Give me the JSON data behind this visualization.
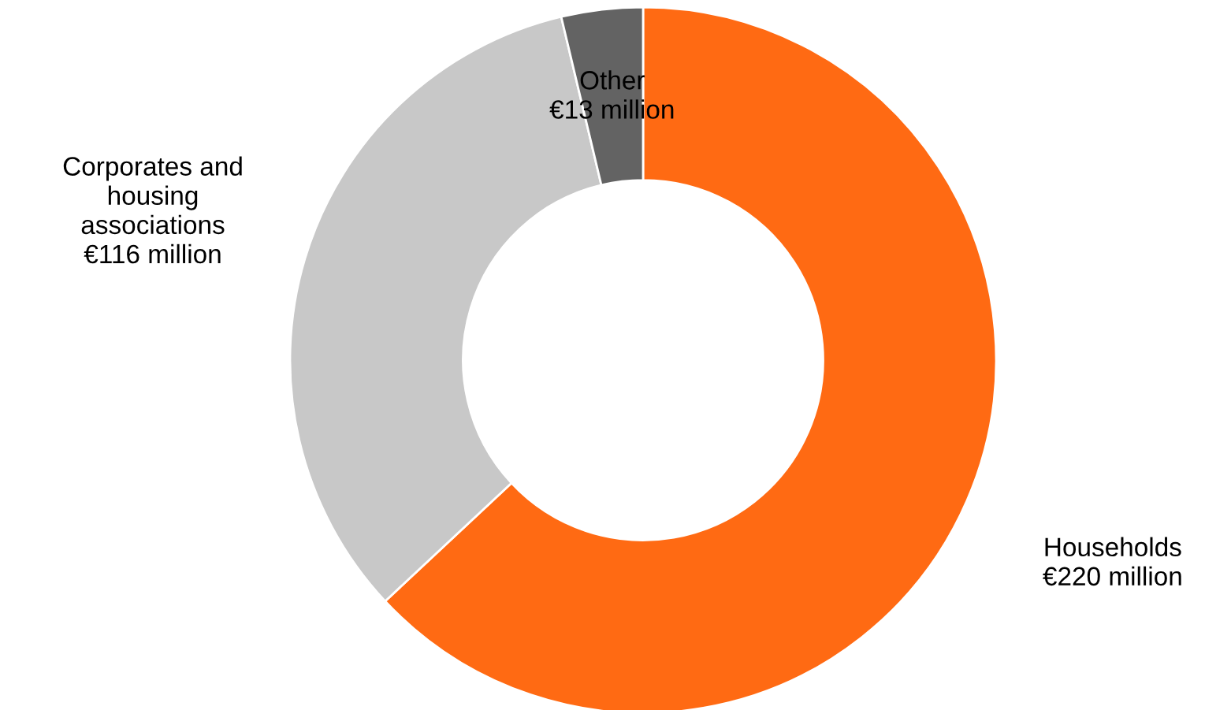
{
  "chart_data": {
    "type": "donut",
    "categories": [
      "Households",
      "Corporates and\nhousing\nassociations",
      "Other"
    ],
    "values": [
      220,
      116,
      13
    ],
    "value_labels": [
      "€220 million",
      "€116 million",
      "€13 million"
    ],
    "colors": [
      "#ff6a13",
      "#c8c8c8",
      "#636363"
    ],
    "legend": false
  }
}
